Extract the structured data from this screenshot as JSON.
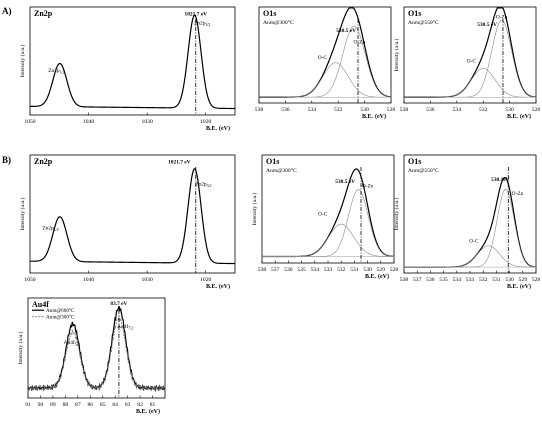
{
  "rows": [
    {
      "label": "A)"
    },
    {
      "label": "B)"
    }
  ],
  "chart_data": [
    {
      "id": "A-zn2p",
      "type": "line",
      "row": "A)",
      "title": "Zn2p",
      "subtitle": "",
      "xlabel": "B.E.",
      "xunit": "(eV)",
      "ylabel": "Intensity (a.u.)",
      "xlim": [
        1050,
        1015
      ],
      "ylim": [
        0,
        1
      ],
      "reversed_x": true,
      "xticks": [
        "1050",
        "1040",
        "1030",
        "1020"
      ],
      "xtick_values": [
        1050,
        1040,
        1030,
        1020
      ],
      "annotations": [
        {
          "text": "1021.7 eV",
          "x": 1021.7,
          "y": 0.92
        },
        {
          "text": "Zn2p",
          "sub": "3/2",
          "x": 1020.6,
          "y": 0.84
        },
        {
          "text": "Zn2p",
          "sub": "1/2",
          "x": 1045.5,
          "y": 0.4
        }
      ],
      "vline": 1021.7,
      "series": [
        {
          "name": "",
          "peaks": [
            {
              "center": 1044.9,
              "height": 0.4,
              "width": 1.2
            },
            {
              "center": 1021.9,
              "height": 0.86,
              "width": 1.1
            }
          ],
          "baseline": 0.06,
          "baseline_slope": 0.02
        }
      ]
    },
    {
      "id": "A-o1s-300",
      "type": "line",
      "row": "A)",
      "title": "O1s",
      "subtitle": "Anm@300°C",
      "xlabel": "B.E.",
      "xunit": "(eV)",
      "ylabel": "",
      "xlim": [
        538,
        528
      ],
      "ylim": [
        0,
        1
      ],
      "reversed_x": true,
      "xticks": [
        "538",
        "536",
        "534",
        "532",
        "530",
        "528"
      ],
      "xtick_values": [
        538,
        536,
        534,
        532,
        530,
        528
      ],
      "annotations": [
        {
          "text": "530.5 eV",
          "x": 531.4,
          "y": 0.74
        },
        {
          "text": "O-Zn",
          "x": 530.4,
          "y": 0.62
        },
        {
          "text": "O-C",
          "x": 533.2,
          "y": 0.46
        }
      ],
      "vline": 530.5,
      "series": [
        {
          "name": "envelope",
          "peaks": [
            {
              "center": 530.8,
              "height": 0.8,
              "width": 0.85
            },
            {
              "center": 532.2,
              "height": 0.36,
              "width": 0.95
            }
          ],
          "baseline": 0.06
        },
        {
          "name": "O-Zn",
          "peaks": [
            {
              "center": 530.8,
              "height": 0.74,
              "width": 0.85
            }
          ],
          "baseline": 0.06
        },
        {
          "name": "O-C",
          "peaks": [
            {
              "center": 532.2,
              "height": 0.36,
              "width": 0.95
            }
          ],
          "baseline": 0.06
        }
      ]
    },
    {
      "id": "A-o1s-550",
      "type": "line",
      "row": "A)",
      "title": "O1s",
      "subtitle": "Anm@550°C",
      "xlabel": "B.E.",
      "xunit": "(eV)",
      "ylabel": "Intensity (a.u.)",
      "xlim": [
        538,
        528
      ],
      "ylim": [
        0,
        1
      ],
      "reversed_x": true,
      "xticks": [
        "538",
        "536",
        "534",
        "532",
        "530",
        "528"
      ],
      "xtick_values": [
        538,
        536,
        534,
        532,
        530,
        528
      ],
      "annotations": [
        {
          "text": "530.5 eV",
          "x": 531.7,
          "y": 0.8
        },
        {
          "text": "O-Zn",
          "x": 530.6,
          "y": 0.88
        },
        {
          "text": "O-C",
          "x": 532.9,
          "y": 0.42
        }
      ],
      "vline": 530.5,
      "series": [
        {
          "name": "envelope",
          "peaks": [
            {
              "center": 530.6,
              "height": 0.86,
              "width": 0.75
            },
            {
              "center": 532.0,
              "height": 0.3,
              "width": 0.9
            }
          ],
          "baseline": 0.06
        },
        {
          "name": "O-Zn",
          "peaks": [
            {
              "center": 530.6,
              "height": 0.8,
              "width": 0.75
            }
          ],
          "baseline": 0.06
        },
        {
          "name": "O-C",
          "peaks": [
            {
              "center": 532.0,
              "height": 0.3,
              "width": 0.9
            }
          ],
          "baseline": 0.06
        }
      ]
    },
    {
      "id": "B-zn2p",
      "type": "line",
      "row": "B)",
      "title": "Zn2p",
      "subtitle": "",
      "xlabel": "B.E.",
      "xunit": "(eV)",
      "ylabel": "Intensity (a.u.)",
      "xlim": [
        1050,
        1015
      ],
      "ylim": [
        0,
        1
      ],
      "reversed_x": true,
      "xticks": [
        "1050",
        "1040",
        "1030",
        "1020"
      ],
      "xtick_values": [
        1050,
        1040,
        1030,
        1020
      ],
      "annotations": [
        {
          "text": "1021.7 eV",
          "x": 1024.5,
          "y": 0.93
        },
        {
          "text": "Zn2p",
          "sub": "3/2",
          "x": 1020.4,
          "y": 0.74
        },
        {
          "text": "Zn2p",
          "sub": "1/2",
          "x": 1046.5,
          "y": 0.37
        }
      ],
      "vline": 1021.7,
      "series": [
        {
          "name": "",
          "peaks": [
            {
              "center": 1044.9,
              "height": 0.38,
              "width": 1.2
            },
            {
              "center": 1021.9,
              "height": 0.8,
              "width": 1.1
            }
          ],
          "baseline": 0.08,
          "baseline_slope": 0.02
        }
      ]
    },
    {
      "id": "B-o1s-300",
      "type": "line",
      "row": "B)",
      "title": "O1s",
      "subtitle": "Anm@300°C",
      "xlabel": "B.E.",
      "xunit": "(eV)",
      "ylabel": "Intensity (a.u.)",
      "xlim": [
        538,
        528
      ],
      "ylim": [
        0,
        1
      ],
      "reversed_x": true,
      "xticks": [
        "538",
        "537",
        "536",
        "535",
        "534",
        "533",
        "532",
        "531",
        "530",
        "529",
        "528"
      ],
      "xtick_values": [
        538,
        537,
        536,
        535,
        534,
        533,
        532,
        531,
        530,
        529,
        528
      ],
      "annotations": [
        {
          "text": "530.5 eV",
          "x": 531.7,
          "y": 0.74
        },
        {
          "text": "O-Zn",
          "x": 530.0,
          "y": 0.7
        },
        {
          "text": "O-C",
          "x": 533.4,
          "y": 0.44
        }
      ],
      "vline": 530.5,
      "series": [
        {
          "name": "envelope",
          "peaks": [
            {
              "center": 530.7,
              "height": 0.68,
              "width": 0.75
            },
            {
              "center": 532.0,
              "height": 0.3,
              "width": 0.95
            }
          ],
          "baseline": 0.06
        },
        {
          "name": "O-Zn",
          "peaks": [
            {
              "center": 530.7,
              "height": 0.62,
              "width": 0.75
            }
          ],
          "baseline": 0.06
        },
        {
          "name": "O-C",
          "peaks": [
            {
              "center": 532.0,
              "height": 0.3,
              "width": 0.95
            }
          ],
          "baseline": 0.06
        }
      ]
    },
    {
      "id": "B-o1s-550",
      "type": "line",
      "row": "B)",
      "title": "O1s",
      "subtitle": "Anm@550°C",
      "xlabel": "B.E.",
      "xunit": "(eV)",
      "ylabel": "Intensity (a.u.)",
      "xlim": [
        538,
        528
      ],
      "ylim": [
        0,
        1
      ],
      "reversed_x": true,
      "xticks": [
        "538",
        "537",
        "536",
        "535",
        "534",
        "533",
        "532",
        "531",
        "530",
        "529",
        "528"
      ],
      "xtick_values": [
        538,
        537,
        536,
        535,
        534,
        533,
        532,
        531,
        530,
        529,
        528
      ],
      "annotations": [
        {
          "text": "530.1eV",
          "x": 530.7,
          "y": 0.78
        },
        {
          "text": "O-Zn",
          "x": 529.4,
          "y": 0.66
        },
        {
          "text": "O-C",
          "x": 532.7,
          "y": 0.26
        }
      ],
      "vline": 530.1,
      "series": [
        {
          "name": "envelope",
          "peaks": [
            {
              "center": 530.3,
              "height": 0.7,
              "width": 0.65
            },
            {
              "center": 531.6,
              "height": 0.18,
              "width": 0.85
            }
          ],
          "baseline": 0.05
        },
        {
          "name": "O-Zn",
          "peaks": [
            {
              "center": 530.3,
              "height": 0.66,
              "width": 0.65
            }
          ],
          "baseline": 0.05
        },
        {
          "name": "O-C",
          "peaks": [
            {
              "center": 531.6,
              "height": 0.18,
              "width": 0.85
            }
          ],
          "baseline": 0.05
        }
      ]
    },
    {
      "id": "B-au4f",
      "type": "line",
      "row": "B)",
      "title": "Au4f",
      "subtitle": "",
      "xlabel": "B.E.",
      "xunit": "(eV)",
      "ylabel": "Intensity (a.u.)",
      "xlim": [
        91,
        80
      ],
      "ylim": [
        0,
        1
      ],
      "reversed_x": true,
      "xticks": [
        "91",
        "90",
        "89",
        "88",
        "87",
        "86",
        "85",
        "84",
        "83",
        "82",
        "81"
      ],
      "xtick_values": [
        91,
        90,
        89,
        88,
        87,
        86,
        85,
        84,
        83,
        82,
        81
      ],
      "legend": {
        "placement": "top-left"
      },
      "annotations": [
        {
          "text": "83.7 eV",
          "x": 83.7,
          "y": 0.93
        },
        {
          "text": "Au4f",
          "sub": "7/2",
          "x": 83.2,
          "y": 0.7
        },
        {
          "text": "Au4f",
          "sub": "5/2",
          "x": 87.5,
          "y": 0.54
        }
      ],
      "vline": 83.7,
      "series": [
        {
          "name": "Anm@600°C",
          "style": "solid",
          "peaks": [
            {
              "center": 87.4,
              "height": 0.64,
              "width": 0.55
            },
            {
              "center": 83.7,
              "height": 0.8,
              "width": 0.55
            }
          ],
          "baseline": 0.1,
          "noise": 0.025
        },
        {
          "name": "Anm@300°C",
          "style": "dashed",
          "peaks": [
            {
              "center": 87.4,
              "height": 0.56,
              "width": 0.55
            },
            {
              "center": 83.7,
              "height": 0.7,
              "width": 0.55
            }
          ],
          "baseline": 0.1,
          "noise": 0.03
        }
      ]
    }
  ]
}
